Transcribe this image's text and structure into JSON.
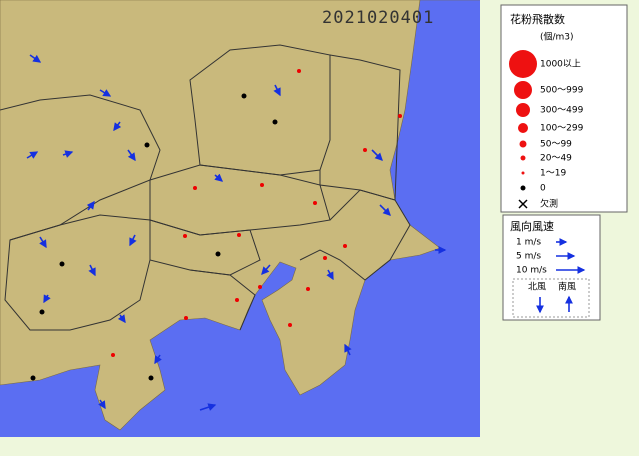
{
  "map": {
    "timestamp": "2021020401"
  },
  "pollen_legend": {
    "title": "花粉飛散数",
    "unit": "(個/m3)",
    "items": [
      "1000以上",
      "500〜999",
      "300〜499",
      "100〜299",
      "50〜99",
      "20〜49",
      "1〜19",
      "0",
      "欠測"
    ]
  },
  "wind_legend": {
    "title": "風向風速",
    "speeds": [
      "1 m/s",
      "5 m/s",
      "10 m/s"
    ],
    "north": "北風",
    "south": "南風"
  }
}
